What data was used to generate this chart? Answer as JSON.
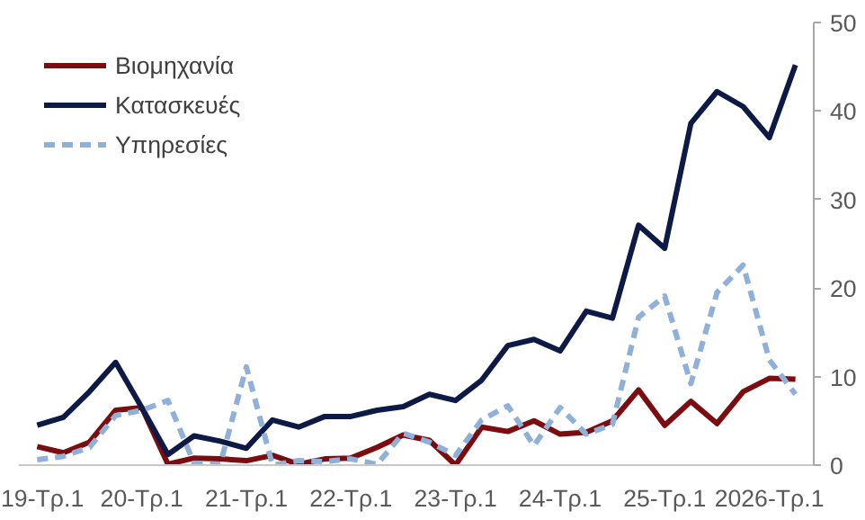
{
  "chart_data": {
    "type": "line",
    "categories": [
      "19-Τρ.1",
      null,
      null,
      null,
      "20-Τρ.1",
      null,
      null,
      null,
      "21-Τρ.1",
      null,
      null,
      null,
      "22-Τρ.1",
      null,
      null,
      null,
      "23-Τρ.1",
      null,
      null,
      null,
      "24-Τρ.1",
      null,
      null,
      null,
      "25-Τρ.1",
      null,
      null,
      null,
      "2026-Τρ.1",
      null
    ],
    "series": [
      {
        "name": "Βιομηχανία",
        "color": "#7b0c10",
        "line_style": "solid",
        "values": [
          2.1,
          1.4,
          2.6,
          6.2,
          6.5,
          0.1,
          0.8,
          0.7,
          0.5,
          1.1,
          0.1,
          0.7,
          0.8,
          2.0,
          3.4,
          2.8,
          0.0,
          4.3,
          3.8,
          5.0,
          3.5,
          3.7,
          5.0,
          8.5,
          4.5,
          7.2,
          4.7,
          8.3,
          9.8,
          9.7
        ]
      },
      {
        "name": "Κατασκευές",
        "color": "#0d1a45",
        "line_style": "solid",
        "values": [
          4.5,
          5.4,
          8.3,
          11.6,
          6.5,
          1.2,
          3.3,
          2.7,
          1.9,
          5.1,
          4.3,
          5.5,
          5.5,
          6.2,
          6.6,
          8.0,
          7.3,
          9.6,
          13.5,
          14.2,
          12.9,
          17.4,
          16.6,
          27.1,
          24.5,
          38.6,
          42.2,
          40.5,
          37.0,
          45.2
        ]
      },
      {
        "name": "Υπηρεσίες",
        "color": "#8fb0d8",
        "line_style": "dashed",
        "values": [
          0.6,
          1.0,
          2.0,
          5.6,
          6.2,
          7.3,
          0.2,
          0.1,
          11.1,
          0.0,
          0.5,
          0.4,
          0.7,
          0.1,
          3.6,
          2.6,
          1.1,
          5.1,
          6.7,
          2.2,
          6.5,
          3.5,
          4.6,
          16.7,
          19.1,
          9.2,
          19.5,
          22.6,
          11.9,
          8.0
        ]
      }
    ],
    "ylim": [
      0,
      50
    ],
    "yticks": [
      0,
      10,
      20,
      30,
      40,
      50
    ],
    "grid": false,
    "legend": "top left",
    "marker": "none"
  }
}
